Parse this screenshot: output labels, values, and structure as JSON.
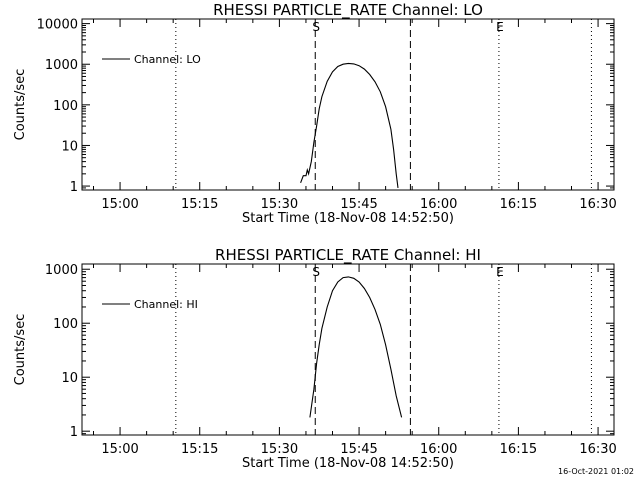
{
  "footer": {
    "timestamp": "16-Oct-2021 01:02"
  },
  "style": {
    "line_color": "#000000",
    "background": "#ffffff"
  },
  "chart_data": [
    {
      "type": "line",
      "title": "RHESSI PARTICLE_RATE Channel: LO",
      "xlabel": "Start Time (18-Nov-08 14:52:50)",
      "ylabel": "Counts/sec",
      "yscale": "log",
      "ylim": [
        0.8,
        13000
      ],
      "xlim": [
        "14:52:50",
        "16:33:00"
      ],
      "x_ticks": [
        "15:00",
        "15:15",
        "15:30",
        "15:45",
        "16:00",
        "16:15",
        "16:30"
      ],
      "y_ticks": [
        {
          "value": 1,
          "label": "1"
        },
        {
          "value": 10,
          "label": "10"
        },
        {
          "value": 100,
          "label": "100"
        },
        {
          "value": 1000,
          "label": "1000"
        },
        {
          "value": 10000,
          "label": "10000"
        }
      ],
      "legend": {
        "position": "top-left"
      },
      "grid": false,
      "markers": [
        {
          "time": "15:10:30",
          "label": "",
          "style": "dotted"
        },
        {
          "time": "15:36:45",
          "label": "S",
          "style": "dashed"
        },
        {
          "time": "15:54:40",
          "label": "",
          "style": "dashed"
        },
        {
          "time": "16:11:20",
          "label": "E",
          "style": "dotted"
        },
        {
          "time": "16:28:45",
          "label": "",
          "style": "dotted"
        }
      ],
      "series": [
        {
          "name": "Channel: LO",
          "x": [
            "15:34:00",
            "15:34:30",
            "15:35:00",
            "15:35:15",
            "15:35:30",
            "15:36:00",
            "15:36:30",
            "15:37:00",
            "15:37:30",
            "15:38:00",
            "15:39:00",
            "15:40:00",
            "15:41:00",
            "15:42:00",
            "15:43:00",
            "15:44:00",
            "15:45:00",
            "15:46:00",
            "15:47:00",
            "15:48:00",
            "15:49:00",
            "15:50:00",
            "15:51:00",
            "15:51:30",
            "15:52:00",
            "15:52:20"
          ],
          "values": [
            1.2,
            1.8,
            1.8,
            2.5,
            2.0,
            4,
            12,
            30,
            80,
            160,
            380,
            650,
            880,
            1000,
            1050,
            1020,
            920,
            760,
            560,
            370,
            210,
            90,
            25,
            8,
            2,
            0.9
          ]
        }
      ]
    },
    {
      "type": "line",
      "title": "RHESSI PARTICLE_RATE Channel: HI",
      "xlabel": "Start Time (18-Nov-08 14:52:50)",
      "ylabel": "Counts/sec",
      "yscale": "log",
      "ylim": [
        0.85,
        1250
      ],
      "xlim": [
        "14:52:50",
        "16:33:00"
      ],
      "x_ticks": [
        "15:00",
        "15:15",
        "15:30",
        "15:45",
        "16:00",
        "16:15",
        "16:30"
      ],
      "y_ticks": [
        {
          "value": 1,
          "label": "1"
        },
        {
          "value": 10,
          "label": "10"
        },
        {
          "value": 100,
          "label": "100"
        },
        {
          "value": 1000,
          "label": "1000"
        }
      ],
      "legend": {
        "position": "top-left"
      },
      "grid": false,
      "markers": [
        {
          "time": "15:10:30",
          "label": "",
          "style": "dotted"
        },
        {
          "time": "15:36:45",
          "label": "S",
          "style": "dashed"
        },
        {
          "time": "15:54:40",
          "label": "",
          "style": "dashed"
        },
        {
          "time": "16:11:20",
          "label": "E",
          "style": "dotted"
        },
        {
          "time": "16:28:45",
          "label": "",
          "style": "dotted"
        }
      ],
      "series": [
        {
          "name": "Channel: HI",
          "x": [
            "15:35:45",
            "15:36:30",
            "15:37:00",
            "15:37:30",
            "15:38:00",
            "15:39:00",
            "15:40:00",
            "15:41:00",
            "15:42:00",
            "15:43:00",
            "15:44:00",
            "15:45:00",
            "15:46:00",
            "15:47:00",
            "15:48:00",
            "15:49:00",
            "15:50:00",
            "15:51:00",
            "15:52:00",
            "15:53:00"
          ],
          "values": [
            1.8,
            6,
            18,
            40,
            80,
            200,
            400,
            580,
            700,
            720,
            680,
            580,
            440,
            300,
            180,
            95,
            40,
            14,
            4.5,
            1.8
          ]
        }
      ]
    }
  ]
}
